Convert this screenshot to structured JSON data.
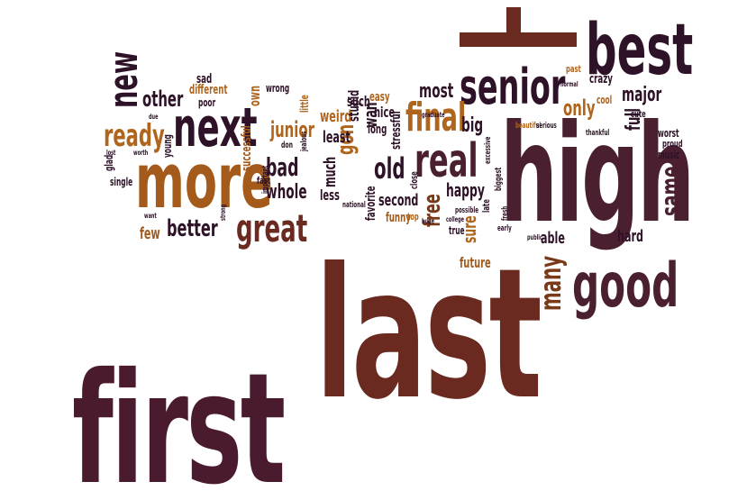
{
  "word_cloud": {
    "palette": {
      "dark": "#2e1227",
      "maroon": "#5a2038",
      "rust": "#6b2a1f",
      "brown": "#7a3a1a",
      "orange": "#b0651c",
      "gold": "#c88a2a"
    },
    "words": [
      {
        "text": "first",
        "color": "#4a1a2e"
      },
      {
        "text": "last",
        "color": "#6b2a1f"
      },
      {
        "text": "high",
        "color": "#4a1f30"
      },
      {
        "text": "good",
        "color": "#4a1f30"
      },
      {
        "text": "best",
        "color": "#2e1227"
      },
      {
        "text": "senior",
        "color": "#2e1227"
      },
      {
        "text": "more",
        "color": "#a35a1a"
      },
      {
        "text": "next",
        "color": "#2e1227"
      },
      {
        "text": "new",
        "color": "#2e1227"
      },
      {
        "text": "great",
        "color": "#6b2a1f"
      },
      {
        "text": "real",
        "color": "#4a1f30"
      },
      {
        "text": "final",
        "color": "#b0651c"
      },
      {
        "text": "ready",
        "color": "#b0651c"
      },
      {
        "text": "other",
        "color": "#2e1227"
      },
      {
        "text": "better",
        "color": "#2e1227"
      },
      {
        "text": "same",
        "color": "#4a1f30"
      },
      {
        "text": "many",
        "color": "#7a3a1a"
      },
      {
        "text": "hard",
        "color": "#2e1227"
      },
      {
        "text": "major",
        "color": "#2e1227"
      },
      {
        "text": "most",
        "color": "#2e1227"
      },
      {
        "text": "old",
        "color": "#2e1227"
      },
      {
        "text": "big",
        "color": "#2e1227"
      },
      {
        "text": "bad",
        "color": "#2e1227"
      },
      {
        "text": "whole",
        "color": "#2e1227"
      },
      {
        "text": "junior",
        "color": "#b0651c"
      },
      {
        "text": "few",
        "color": "#a35a1a"
      },
      {
        "text": "gon",
        "color": "#b0651c"
      },
      {
        "text": "free",
        "color": "#7a3a1a"
      },
      {
        "text": "happy",
        "color": "#2e1227"
      },
      {
        "text": "only",
        "color": "#b0651c"
      },
      {
        "text": "sure",
        "color": "#b0651c"
      },
      {
        "text": "able",
        "color": "#2e1227"
      },
      {
        "text": "future",
        "color": "#a35a1a"
      },
      {
        "text": "full",
        "color": "#2e1227"
      },
      {
        "text": "crazy",
        "color": "#2e1227"
      },
      {
        "text": "cool",
        "color": "#b0651c"
      },
      {
        "text": "much",
        "color": "#2e1227"
      },
      {
        "text": "less",
        "color": "#2e1227"
      },
      {
        "text": "second",
        "color": "#2e1227"
      },
      {
        "text": "wan",
        "color": "#2e1227"
      },
      {
        "text": "least",
        "color": "#2e1227"
      },
      {
        "text": "weird",
        "color": "#b0651c"
      },
      {
        "text": "such",
        "color": "#2e1227"
      },
      {
        "text": "nice",
        "color": "#2e1227"
      },
      {
        "text": "stupid",
        "color": "#2e1227"
      },
      {
        "text": "favorite",
        "color": "#2e1227"
      },
      {
        "text": "funny",
        "color": "#a35a1a"
      },
      {
        "text": "stressful",
        "color": "#2e1227"
      },
      {
        "text": "easy",
        "color": "#b0651c"
      },
      {
        "text": "long",
        "color": "#2e1227"
      },
      {
        "text": "sad",
        "color": "#2e1227"
      },
      {
        "text": "different",
        "color": "#b0651c"
      },
      {
        "text": "own",
        "color": "#b0651c"
      },
      {
        "text": "wrong",
        "color": "#2e1227"
      },
      {
        "text": "successful",
        "color": "#a35a1a"
      },
      {
        "text": "little",
        "color": "#b0651c"
      },
      {
        "text": "poor",
        "color": "#2e1227"
      },
      {
        "text": "young",
        "color": "#2e1227"
      },
      {
        "text": "glad",
        "color": "#2e1227"
      },
      {
        "text": "single",
        "color": "#2e1227"
      },
      {
        "text": "fast",
        "color": "#2e1227"
      },
      {
        "text": "true",
        "color": "#2e1227"
      },
      {
        "text": "worst",
        "color": "#2e1227"
      },
      {
        "text": "music",
        "color": "#2e1227"
      },
      {
        "text": "proud",
        "color": "#2e1227"
      },
      {
        "text": "cute",
        "color": "#2e1227"
      },
      {
        "text": "past",
        "color": "#b0651c"
      },
      {
        "text": "late",
        "color": "#2e1227"
      },
      {
        "text": "top",
        "color": "#b0651c"
      },
      {
        "text": "don",
        "color": "#2e1227"
      },
      {
        "text": "close",
        "color": "#2e1227"
      },
      {
        "text": "important",
        "color": "#2e1227"
      },
      {
        "text": "national",
        "color": "#2e1227"
      },
      {
        "text": "jealous",
        "color": "#2e1227"
      },
      {
        "text": "huge",
        "color": "#2e1227"
      },
      {
        "text": "early",
        "color": "#2e1227"
      },
      {
        "text": "fresh",
        "color": "#2e1227"
      },
      {
        "text": "possible",
        "color": "#2e1227"
      },
      {
        "text": "biggest",
        "color": "#2e1227"
      },
      {
        "text": "excessive",
        "color": "#2e1227"
      },
      {
        "text": "beautiful",
        "color": "#b0651c"
      },
      {
        "text": "serious",
        "color": "#2e1227"
      },
      {
        "text": "thankful",
        "color": "#2e1227"
      },
      {
        "text": "normal",
        "color": "#2e1227"
      },
      {
        "text": "college",
        "color": "#2e1227"
      },
      {
        "text": "worth",
        "color": "#2e1227"
      },
      {
        "text": "strong",
        "color": "#2e1227"
      },
      {
        "text": "public",
        "color": "#2e1227"
      },
      {
        "text": "graduate",
        "color": "#2e1227"
      },
      {
        "text": "due",
        "color": "#2e1227"
      },
      {
        "text": "lost",
        "color": "#2e1227"
      },
      {
        "text": "want",
        "color": "#2e1227"
      }
    ]
  }
}
